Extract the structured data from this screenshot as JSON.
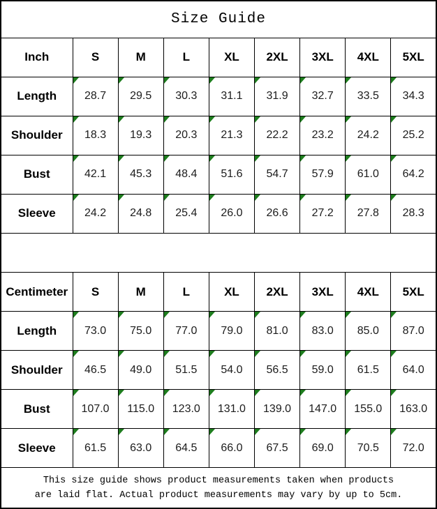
{
  "title": "Size Guide",
  "colors": {
    "border": "#000000",
    "triangle_green": "#1e7d1e",
    "background": "#ffffff",
    "text": "#000000"
  },
  "sizes": [
    "S",
    "M",
    "L",
    "XL",
    "2XL",
    "3XL",
    "4XL",
    "5XL"
  ],
  "tables": [
    {
      "unit_label": "Inch",
      "rows": [
        {
          "label": "Length",
          "values": [
            "28.7",
            "29.5",
            "30.3",
            "31.1",
            "31.9",
            "32.7",
            "33.5",
            "34.3"
          ]
        },
        {
          "label": "Shoulder",
          "values": [
            "18.3",
            "19.3",
            "20.3",
            "21.3",
            "22.2",
            "23.2",
            "24.2",
            "25.2"
          ]
        },
        {
          "label": "Bust",
          "values": [
            "42.1",
            "45.3",
            "48.4",
            "51.6",
            "54.7",
            "57.9",
            "61.0",
            "64.2"
          ]
        },
        {
          "label": "Sleeve",
          "values": [
            "24.2",
            "24.8",
            "25.4",
            "26.0",
            "26.6",
            "27.2",
            "27.8",
            "28.3"
          ]
        }
      ]
    },
    {
      "unit_label": "Centimeter",
      "rows": [
        {
          "label": "Length",
          "values": [
            "73.0",
            "75.0",
            "77.0",
            "79.0",
            "81.0",
            "83.0",
            "85.0",
            "87.0"
          ]
        },
        {
          "label": "Shoulder",
          "values": [
            "46.5",
            "49.0",
            "51.5",
            "54.0",
            "56.5",
            "59.0",
            "61.5",
            "64.0"
          ]
        },
        {
          "label": "Bust",
          "values": [
            "107.0",
            "115.0",
            "123.0",
            "131.0",
            "139.0",
            "147.0",
            "155.0",
            "163.0"
          ]
        },
        {
          "label": "Sleeve",
          "values": [
            "61.5",
            "63.0",
            "64.5",
            "66.0",
            "67.5",
            "69.0",
            "70.5",
            "72.0"
          ]
        }
      ]
    }
  ],
  "footer": {
    "line1": "This size guide shows product measurements taken when products",
    "line2": "are laid flat. Actual product measurements may vary by up to 5cm."
  }
}
